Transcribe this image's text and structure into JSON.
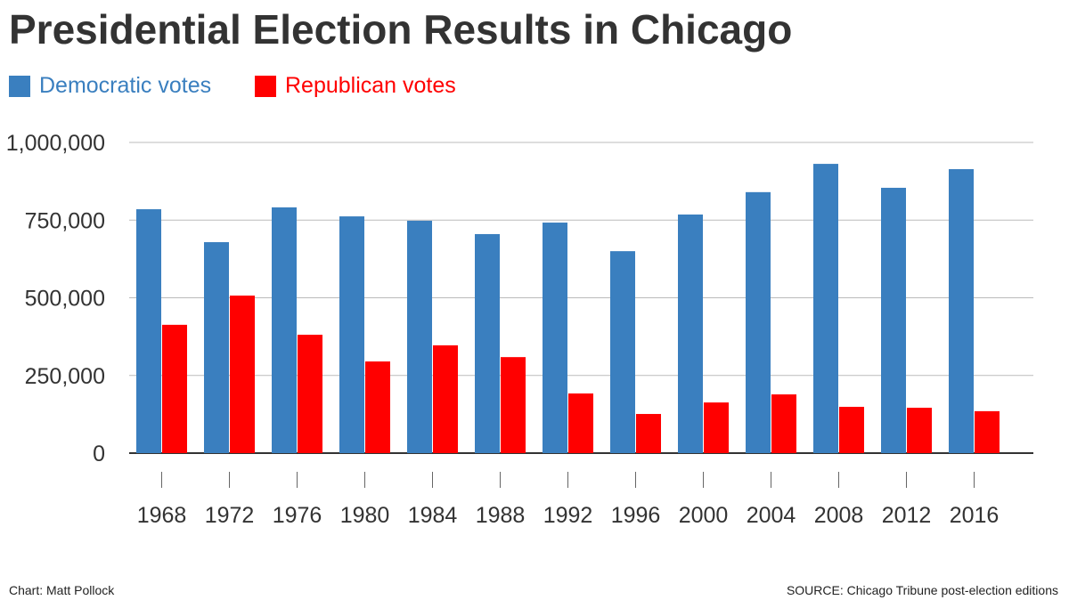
{
  "chart_data": {
    "type": "bar",
    "title": "Presidential Election Results in Chicago",
    "categories": [
      "1968",
      "1972",
      "1976",
      "1980",
      "1984",
      "1988",
      "1992",
      "1996",
      "2000",
      "2004",
      "2008",
      "2012",
      "2016"
    ],
    "series": [
      {
        "name": "Democratic votes",
        "color": "#3a7fbf",
        "values": [
          785000,
          679000,
          791000,
          762000,
          748000,
          705000,
          742000,
          650000,
          768000,
          840000,
          931000,
          854000,
          914000
        ]
      },
      {
        "name": "Republican votes",
        "color": "#ff0000",
        "values": [
          413000,
          507000,
          381000,
          295000,
          347000,
          309000,
          192000,
          126000,
          163000,
          189000,
          149000,
          146000,
          135000
        ]
      }
    ],
    "ylim": [
      0,
      1000000
    ],
    "yticks": [
      0,
      250000,
      500000,
      750000,
      1000000
    ],
    "ytick_labels": [
      "0",
      "250,000",
      "500,000",
      "750,000",
      "1,000,000"
    ],
    "grid": true,
    "legend_position": "top-left"
  },
  "footer": {
    "credit": "Chart: Matt Pollock",
    "source": "SOURCE: Chicago Tribune post-election editions"
  }
}
